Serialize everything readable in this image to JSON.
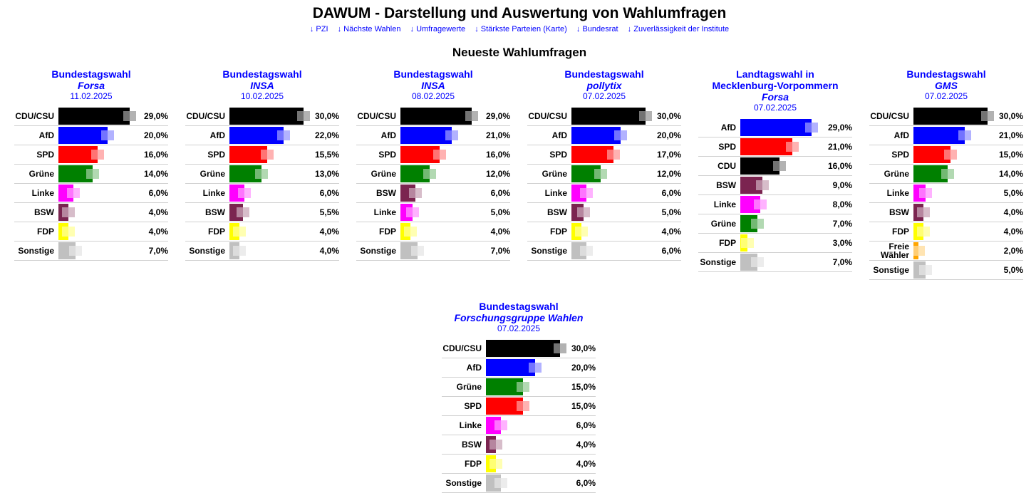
{
  "title": "DAWUM - Darstellung und Auswertung von Wahlumfragen",
  "nav": [
    "↓ PZI",
    "↓ Nächste Wahlen",
    "↓ Umfragewerte",
    "↓ Stärkste Parteien (Karte)",
    "↓ Bundesrat",
    "↓ Zuverlässigkeit der Institute"
  ],
  "section_title": "Neueste Wahlumfragen",
  "colors": {
    "CDU/CSU": "#000000",
    "CDU": "#000000",
    "AfD": "#0000ff",
    "SPD": "#ff0000",
    "Grüne": "#008000",
    "Linke": "#ff00ff",
    "BSW": "#7b2450",
    "FDP": "#ffff00",
    "Freie Wähler": "#ffa500",
    "Sonstige": "#c0c0c0"
  },
  "polls": [
    {
      "title": "Bundestagswahl",
      "institute": "Forsa",
      "date": "11.02.2025",
      "results": [
        [
          "CDU/CSU",
          29,
          "29,0%"
        ],
        [
          "AfD",
          20,
          "20,0%"
        ],
        [
          "SPD",
          16,
          "16,0%"
        ],
        [
          "Grüne",
          14,
          "14,0%"
        ],
        [
          "Linke",
          6,
          "6,0%"
        ],
        [
          "BSW",
          4,
          "4,0%"
        ],
        [
          "FDP",
          4,
          "4,0%"
        ],
        [
          "Sonstige",
          7,
          "7,0%"
        ]
      ]
    },
    {
      "title": "Bundestagswahl",
      "institute": "INSA",
      "date": "10.02.2025",
      "results": [
        [
          "CDU/CSU",
          30,
          "30,0%"
        ],
        [
          "AfD",
          22,
          "22,0%"
        ],
        [
          "SPD",
          15.5,
          "15,5%"
        ],
        [
          "Grüne",
          13,
          "13,0%"
        ],
        [
          "Linke",
          6,
          "6,0%"
        ],
        [
          "BSW",
          5.5,
          "5,5%"
        ],
        [
          "FDP",
          4,
          "4,0%"
        ],
        [
          "Sonstige",
          4,
          "4,0%"
        ]
      ]
    },
    {
      "title": "Bundestagswahl",
      "institute": "INSA",
      "date": "08.02.2025",
      "results": [
        [
          "CDU/CSU",
          29,
          "29,0%"
        ],
        [
          "AfD",
          21,
          "21,0%"
        ],
        [
          "SPD",
          16,
          "16,0%"
        ],
        [
          "Grüne",
          12,
          "12,0%"
        ],
        [
          "BSW",
          6,
          "6,0%"
        ],
        [
          "Linke",
          5,
          "5,0%"
        ],
        [
          "FDP",
          4,
          "4,0%"
        ],
        [
          "Sonstige",
          7,
          "7,0%"
        ]
      ]
    },
    {
      "title": "Bundestagswahl",
      "institute": "pollytix",
      "date": "07.02.2025",
      "results": [
        [
          "CDU/CSU",
          30,
          "30,0%"
        ],
        [
          "AfD",
          20,
          "20,0%"
        ],
        [
          "SPD",
          17,
          "17,0%"
        ],
        [
          "Grüne",
          12,
          "12,0%"
        ],
        [
          "Linke",
          6,
          "6,0%"
        ],
        [
          "BSW",
          5,
          "5,0%"
        ],
        [
          "FDP",
          4,
          "4,0%"
        ],
        [
          "Sonstige",
          6,
          "6,0%"
        ]
      ]
    },
    {
      "title": "Landtagswahl in Mecklenburg-Vorpommern",
      "institute": "Forsa",
      "date": "07.02.2025",
      "results": [
        [
          "AfD",
          29,
          "29,0%"
        ],
        [
          "SPD",
          21,
          "21,0%"
        ],
        [
          "CDU",
          16,
          "16,0%"
        ],
        [
          "BSW",
          9,
          "9,0%"
        ],
        [
          "Linke",
          8,
          "8,0%"
        ],
        [
          "Grüne",
          7,
          "7,0%"
        ],
        [
          "FDP",
          3,
          "3,0%"
        ],
        [
          "Sonstige",
          7,
          "7,0%"
        ]
      ]
    },
    {
      "title": "Bundestagswahl",
      "institute": "GMS",
      "date": "07.02.2025",
      "results": [
        [
          "CDU/CSU",
          30,
          "30,0%"
        ],
        [
          "AfD",
          21,
          "21,0%"
        ],
        [
          "SPD",
          15,
          "15,0%"
        ],
        [
          "Grüne",
          14,
          "14,0%"
        ],
        [
          "Linke",
          5,
          "5,0%"
        ],
        [
          "BSW",
          4,
          "4,0%"
        ],
        [
          "FDP",
          4,
          "4,0%"
        ],
        [
          "Freie Wähler",
          2,
          "2,0%"
        ],
        [
          "Sonstige",
          5,
          "5,0%"
        ]
      ]
    },
    {
      "title": "Bundestagswahl",
      "institute": "Forschungsgruppe Wahlen",
      "date": "07.02.2025",
      "results": [
        [
          "CDU/CSU",
          30,
          "30,0%"
        ],
        [
          "AfD",
          20,
          "20,0%"
        ],
        [
          "Grüne",
          15,
          "15,0%"
        ],
        [
          "SPD",
          15,
          "15,0%"
        ],
        [
          "Linke",
          6,
          "6,0%"
        ],
        [
          "BSW",
          4,
          "4,0%"
        ],
        [
          "FDP",
          4,
          "4,0%"
        ],
        [
          "Sonstige",
          6,
          "6,0%"
        ]
      ]
    }
  ]
}
